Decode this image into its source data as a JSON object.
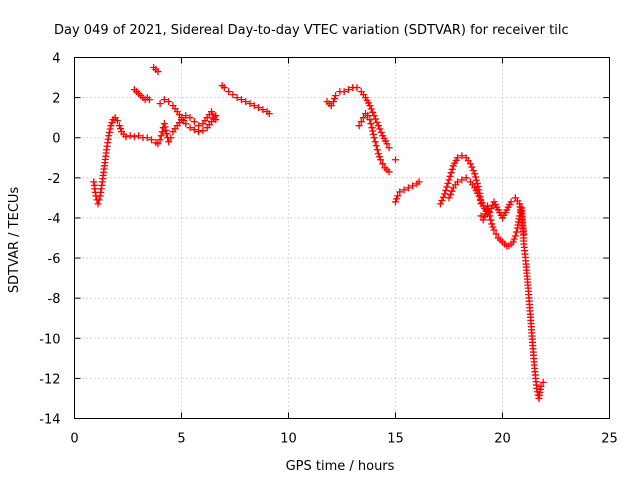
{
  "chart_data": {
    "type": "scatter",
    "title": "Day 049 of 2021, Sidereal Day-to-day VTEC variation (SDTVAR) for receiver tilc",
    "xlabel": "GPS time / hours",
    "ylabel": "SDTVAR / TECUs",
    "xlim": [
      0,
      25
    ],
    "ylim": [
      -14,
      4
    ],
    "xticks": [
      0,
      5,
      10,
      15,
      20,
      25
    ],
    "yticks": [
      -14,
      -12,
      -10,
      -8,
      -6,
      -4,
      -2,
      0,
      2,
      4
    ],
    "grid": true,
    "marker": "+",
    "color": "#ff0000",
    "series": [
      {
        "name": "seg1",
        "x": [
          0.9,
          1.0,
          1.1,
          1.2,
          1.3,
          1.4,
          1.5,
          1.6,
          1.7,
          1.8,
          1.9,
          2.0,
          2.1,
          2.2,
          2.4,
          2.6,
          2.8,
          3.0,
          3.2,
          3.4,
          3.6,
          3.8
        ],
        "y": [
          -2.2,
          -2.9,
          -3.3,
          -2.9,
          -2.2,
          -1.4,
          -0.6,
          0.1,
          0.6,
          0.9,
          1.0,
          0.85,
          0.6,
          0.3,
          0.05,
          0.1,
          0.05,
          0.1,
          0.0,
          0.0,
          -0.1,
          -0.25
        ]
      },
      {
        "name": "seg2",
        "x": [
          2.8,
          2.9,
          3.0,
          3.1,
          3.2,
          3.3,
          3.4,
          3.5
        ],
        "y": [
          2.4,
          2.3,
          2.2,
          2.1,
          2.0,
          1.9,
          2.0,
          1.9
        ]
      },
      {
        "name": "seg3",
        "x": [
          3.7,
          3.8,
          3.9
        ],
        "y": [
          3.5,
          3.4,
          3.3
        ]
      },
      {
        "name": "seg4",
        "x": [
          3.9,
          4.0,
          4.1,
          4.2,
          4.3,
          4.4,
          4.5
        ],
        "y": [
          -0.3,
          -0.1,
          0.3,
          0.7,
          0.2,
          -0.2,
          0.0
        ]
      },
      {
        "name": "seg5",
        "x": [
          4.0,
          4.2,
          4.4,
          4.6,
          4.8,
          5.0,
          5.2,
          5.4,
          5.6,
          5.8,
          6.0,
          6.2,
          6.4,
          6.6
        ],
        "y": [
          1.7,
          1.9,
          1.8,
          1.6,
          1.3,
          1.0,
          0.7,
          0.5,
          0.4,
          0.3,
          0.35,
          0.5,
          0.8,
          1.1
        ]
      },
      {
        "name": "seg6",
        "x": [
          4.6,
          4.8,
          5.0,
          5.2,
          5.4,
          5.6,
          5.8,
          6.0,
          6.2,
          6.4,
          6.6
        ],
        "y": [
          0.3,
          0.6,
          0.9,
          1.1,
          1.0,
          0.8,
          0.6,
          0.7,
          1.0,
          1.3,
          0.9
        ]
      },
      {
        "name": "seg7",
        "x": [
          6.9,
          7.0,
          7.2,
          7.4,
          7.6,
          7.8,
          8.0,
          8.2,
          8.4,
          8.6,
          8.8,
          9.0,
          9.1
        ],
        "y": [
          2.6,
          2.5,
          2.3,
          2.15,
          2.0,
          1.9,
          1.8,
          1.7,
          1.6,
          1.5,
          1.4,
          1.3,
          1.2
        ]
      },
      {
        "name": "seg8",
        "x": [
          11.8,
          11.9,
          12.0,
          12.1,
          12.2,
          12.4,
          12.6,
          12.8,
          13.0,
          13.2,
          13.4,
          13.6,
          13.8,
          14.0,
          14.2,
          14.4,
          14.6,
          14.7
        ],
        "y": [
          1.8,
          1.7,
          1.6,
          1.8,
          2.1,
          2.3,
          2.3,
          2.4,
          2.5,
          2.5,
          2.3,
          2.0,
          1.6,
          1.1,
          0.6,
          0.1,
          -0.3,
          -0.5
        ]
      },
      {
        "name": "seg9",
        "x": [
          13.3,
          13.4,
          13.5,
          13.6,
          13.7,
          13.8,
          13.9,
          14.0,
          14.1,
          14.2,
          14.3,
          14.4,
          14.5,
          14.6,
          14.7
        ],
        "y": [
          0.6,
          0.8,
          1.0,
          1.2,
          1.1,
          0.9,
          0.5,
          0.0,
          -0.4,
          -0.8,
          -1.1,
          -1.3,
          -1.5,
          -1.6,
          -1.7
        ]
      },
      {
        "name": "seg10",
        "x": [
          15.0,
          15.1,
          15.2,
          15.4,
          15.6,
          15.8,
          16.0,
          16.1
        ],
        "y": [
          -3.2,
          -2.9,
          -2.7,
          -2.6,
          -2.5,
          -2.4,
          -2.3,
          -2.2
        ]
      },
      {
        "name": "seg11",
        "x": [
          15.0
        ],
        "y": [
          -1.1
        ]
      },
      {
        "name": "seg12",
        "x": [
          17.1,
          17.3,
          17.5,
          17.7,
          17.9,
          18.1,
          18.3,
          18.5,
          18.7,
          18.9,
          19.0
        ],
        "y": [
          -3.3,
          -2.8,
          -2.1,
          -1.4,
          -1.0,
          -0.9,
          -1.0,
          -1.3,
          -1.8,
          -2.6,
          -3.3
        ]
      },
      {
        "name": "seg13",
        "x": [
          17.5,
          17.7,
          17.9,
          18.1,
          18.3,
          18.5,
          18.7,
          18.9,
          19.1,
          19.3
        ],
        "y": [
          -3.0,
          -2.5,
          -2.2,
          -2.1,
          -2.0,
          -2.2,
          -2.5,
          -2.9,
          -3.4,
          -3.8
        ]
      },
      {
        "name": "seg14",
        "x": [
          19.0,
          19.1,
          19.2,
          19.3,
          19.4,
          19.5,
          19.6,
          19.7,
          19.8,
          19.9,
          20.0,
          20.1,
          20.2,
          20.3,
          20.4,
          20.5,
          20.6,
          20.7,
          20.8,
          20.9,
          21.0,
          21.1,
          21.2,
          21.3,
          21.4,
          21.5,
          21.6,
          21.7,
          21.8,
          21.9
        ],
        "y": [
          -3.9,
          -4.1,
          -3.8,
          -3.4,
          -3.9,
          -4.3,
          -4.6,
          -4.8,
          -5.0,
          -5.1,
          -5.2,
          -5.3,
          -5.4,
          -5.4,
          -5.3,
          -5.2,
          -4.9,
          -4.5,
          -3.9,
          -3.5,
          -5.3,
          -6.3,
          -7.5,
          -8.8,
          -10.2,
          -11.5,
          -12.5,
          -13.0,
          -12.4,
          -12.2
        ]
      },
      {
        "name": "seg15",
        "x": [
          19.4,
          19.6,
          19.8,
          20.0,
          20.2,
          20.4,
          20.6,
          20.8,
          21.0
        ],
        "y": [
          -3.7,
          -3.2,
          -3.6,
          -4.0,
          -3.6,
          -3.2,
          -3.0,
          -3.3,
          -4.8
        ]
      }
    ]
  }
}
